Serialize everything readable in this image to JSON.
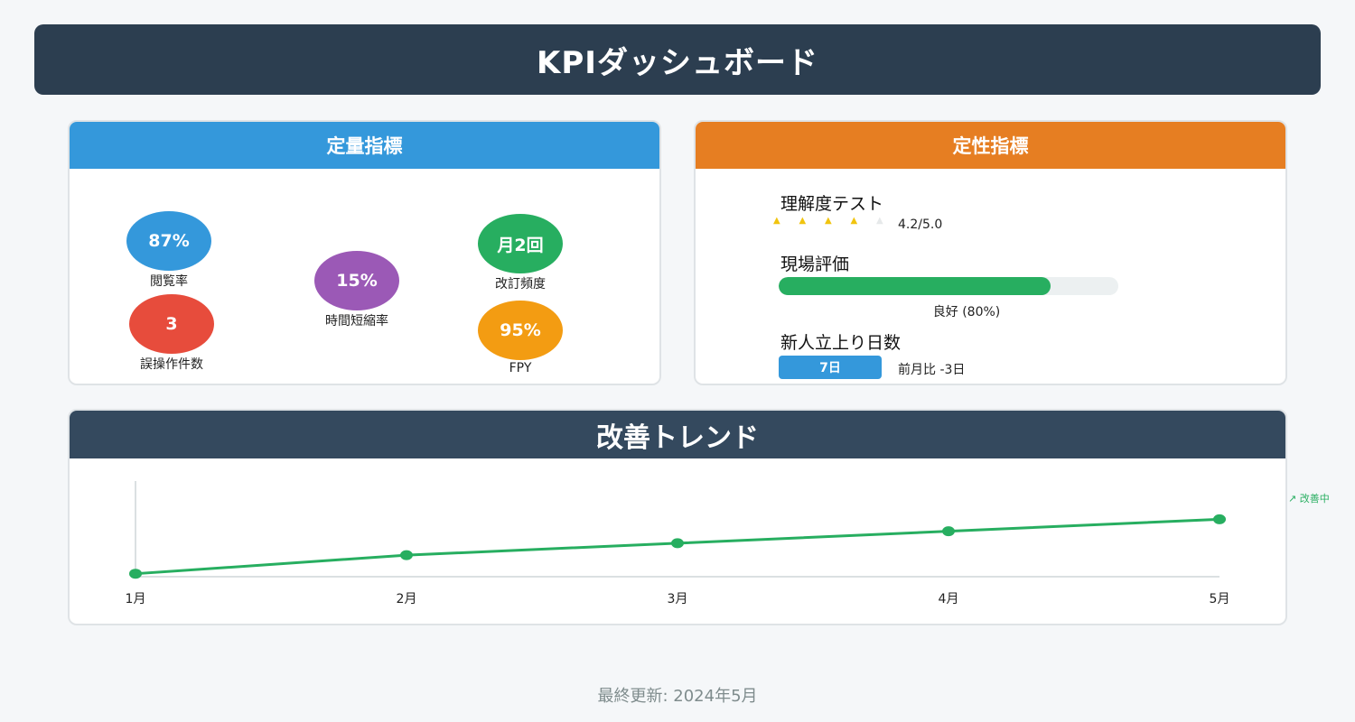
{
  "header": {
    "title": "KPIダッシュボード"
  },
  "quantitative": {
    "title": "定量指標",
    "metrics": [
      {
        "value": "87%",
        "label": "閲覧率",
        "color": "#3498db"
      },
      {
        "value": "3",
        "label": "誤操作件数",
        "color": "#e74c3c"
      },
      {
        "value": "15%",
        "label": "時間短縮率",
        "color": "#9b59b6"
      },
      {
        "value": "月2回",
        "label": "改訂頻度",
        "color": "#27ae60"
      },
      {
        "value": "95%",
        "label": "FPY",
        "color": "#f39c12"
      }
    ]
  },
  "qualitative": {
    "title": "定性指標",
    "understanding": {
      "label": "理解度テスト",
      "rating": 4,
      "max": 5,
      "score_text": "4.2/5.0",
      "star_glyph": "▲"
    },
    "field": {
      "label": "現場評価",
      "fraction": 0.8,
      "text": "良好 (80%)",
      "color": "#27ae60"
    },
    "onboarding": {
      "label": "新人立上り日数",
      "badge": "7日",
      "note": "前月比 -3日"
    }
  },
  "trend": {
    "title": "改善トレンド",
    "note": "↗ 改善中",
    "chart_data": {
      "type": "line",
      "categories": [
        "1月",
        "2月",
        "3月",
        "4月",
        "5月"
      ],
      "values": [
        5,
        36,
        56,
        76,
        96
      ],
      "ylim": [
        0,
        160
      ],
      "grid": false,
      "color": "#27ae60"
    }
  },
  "footer": {
    "text": "最終更新: 2024年5月"
  }
}
